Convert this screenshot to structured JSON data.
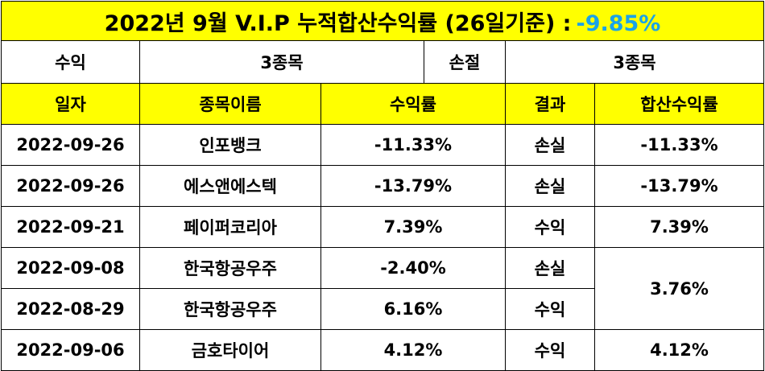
{
  "title": {
    "text": "2022년 9월 V.I.P 누적합산수익률 (26일기준) :",
    "total_return": "-9.85%"
  },
  "summary": {
    "profit_label": "수익",
    "profit_count": "3종목",
    "loss_label": "손절",
    "loss_count": "3종목"
  },
  "headers": {
    "date": "일자",
    "name": "종목이름",
    "return": "수익률",
    "result": "결과",
    "combined": "합산수익률"
  },
  "rows": [
    {
      "date": "2022-09-26",
      "name": "인포뱅크",
      "return": "-11.33%",
      "result": "손실",
      "combined": "-11.33%"
    },
    {
      "date": "2022-09-26",
      "name": "에스앤에스텍",
      "return": "-13.79%",
      "result": "손실",
      "combined": "-13.79%"
    },
    {
      "date": "2022-09-21",
      "name": "페이퍼코리아",
      "return": "7.39%",
      "result": "수익",
      "combined": "7.39%"
    },
    {
      "date": "2022-09-08",
      "name": "한국항공우주",
      "return": "-2.40%",
      "result": "손실",
      "combined": "3.76%"
    },
    {
      "date": "2022-08-29",
      "name": "한국항공우주",
      "return": "6.16%",
      "result": "수익"
    },
    {
      "date": "2022-09-06",
      "name": "금호타이어",
      "return": "4.12%",
      "result": "수익",
      "combined": "4.12%"
    }
  ],
  "colors": {
    "header_bg": "#ffff00",
    "negative": "#1aa3e8",
    "positive": "#ff0000",
    "grid": "#000000"
  }
}
